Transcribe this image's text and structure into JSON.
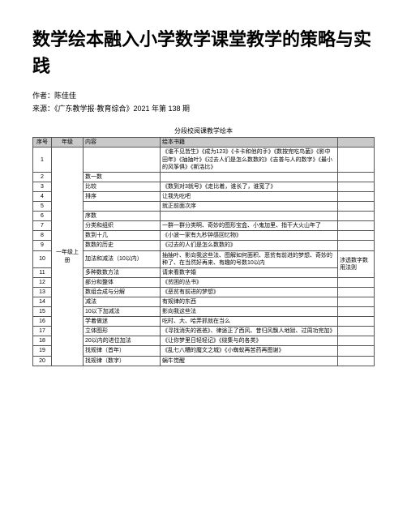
{
  "title": "数学绘本融入小学数学课堂教学的策略与实践",
  "author_label": "作者：",
  "author": "陈佳佳",
  "source_label": "来源：",
  "source": "《广东教学报·教育综合》2021 年第 138 期",
  "table_title": "分段校阅课教学绘本",
  "headers": {
    "idx": "序号",
    "grade": "年级",
    "content": "内容",
    "books": "绘本书籍",
    "extra": ""
  },
  "grade_label": "一年级上册",
  "extra_note": "涉透数字数用法则",
  "rows": [
    {
      "idx": "1",
      "content": "",
      "books": "《谁不见皆生》《成为123》《卡卡和他的手》《数按完吃鸟菌》《影中田年》《抽抽叶》《过去人们是怎么数数的》《吉普与人的数字》《最小的风筝俱》《斯洛比》"
    },
    {
      "idx": "2",
      "content": "数一数",
      "books": ""
    },
    {
      "idx": "3",
      "content": "比较",
      "books": "《数到对3就号》《走比着，谁长了，谁宽了》"
    },
    {
      "idx": "4",
      "content": "排序",
      "books": "让我先吃吧"
    },
    {
      "idx": "5",
      "content": "",
      "books": "就正前面次序"
    },
    {
      "idx": "6",
      "content": "序数",
      "books": ""
    },
    {
      "idx": "7",
      "content": "分类和组织",
      "books": "一群一群分类啊、奇妙的图形宝盒、小鬼加里、指干大火山年了"
    },
    {
      "idx": "8",
      "content": "数到十几",
      "books": "《小波一家有九秒钟感回忆物》"
    },
    {
      "idx": "9",
      "content": "数数的历史",
      "books": "《过去的人们是怎么数数的》"
    },
    {
      "idx": "10",
      "content": "加法和减法（10以内）",
      "books": "抽抽叶、影向我这些法、图解如何面积、恶贫有前进的梦想、奇妙的种了、在当然好再来、有趣的号数10以内",
      "extra": ""
    },
    {
      "idx": "11",
      "content": "多种数数方法",
      "books": "请来看数字婚"
    },
    {
      "idx": "12",
      "content": "部分和整体",
      "books": "《贫困的丛书》"
    },
    {
      "idx": "13",
      "content": "数组合成与分解",
      "books": "《恶贫有前进的梦想》"
    },
    {
      "idx": "14",
      "content": "减法",
      "books": "有规律的东西"
    },
    {
      "idx": "15",
      "content": "10以下加减法",
      "books": "影向我这些法"
    },
    {
      "idx": "16",
      "content": "学着做迷",
      "books": "吃时、大、哈弄抓就在当么"
    },
    {
      "idx": "17",
      "content": "立体图形",
      "books": "《寻找消失的爸爸》、律途正了西风、昔归风飘人地狱、过周功完加》"
    },
    {
      "idx": "18",
      "content": "20以内的进位加法",
      "books": "《让你梦里日轻轻记》《绕集与的各类》"
    },
    {
      "idx": "19",
      "content": "找规律（首年）",
      "books": "《乱七八糟的魔文之城》《小蜘蚁再苦药再图谢》"
    },
    {
      "idx": "20",
      "content": "找规律（数字）",
      "books": "蜗牛觉醒"
    }
  ]
}
